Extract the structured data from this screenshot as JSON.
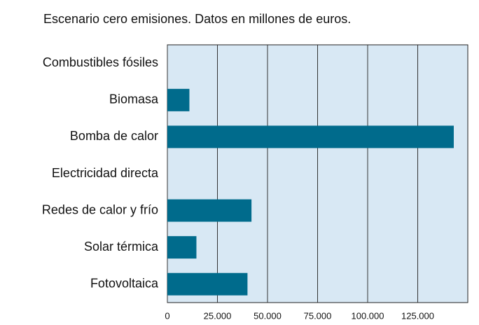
{
  "chart_data": {
    "type": "barh",
    "title": "Escenario cero emisiones. Datos en millones de euros.",
    "categories": [
      "Combustibles fósiles",
      "Biomasa",
      "Bomba de calor",
      "Electricidad directa",
      "Redes de calor y frío",
      "Solar térmica",
      "Fotovoltaica"
    ],
    "values": [
      0,
      11000,
      143000,
      0,
      42000,
      14500,
      40000
    ],
    "color": "#006b8c",
    "background": "#d8e8f4",
    "xlim": [
      0,
      150000
    ],
    "xticks": [
      0,
      {
        "value": 25000,
        "label": "25.000"
      },
      {
        "value": 50000,
        "label": "50.000"
      },
      {
        "value": 75000,
        "label": "75.000"
      },
      {
        "value": 100000,
        "label": "100.000"
      },
      {
        "value": 125000,
        "label": "125.000"
      }
    ],
    "grid": true
  }
}
